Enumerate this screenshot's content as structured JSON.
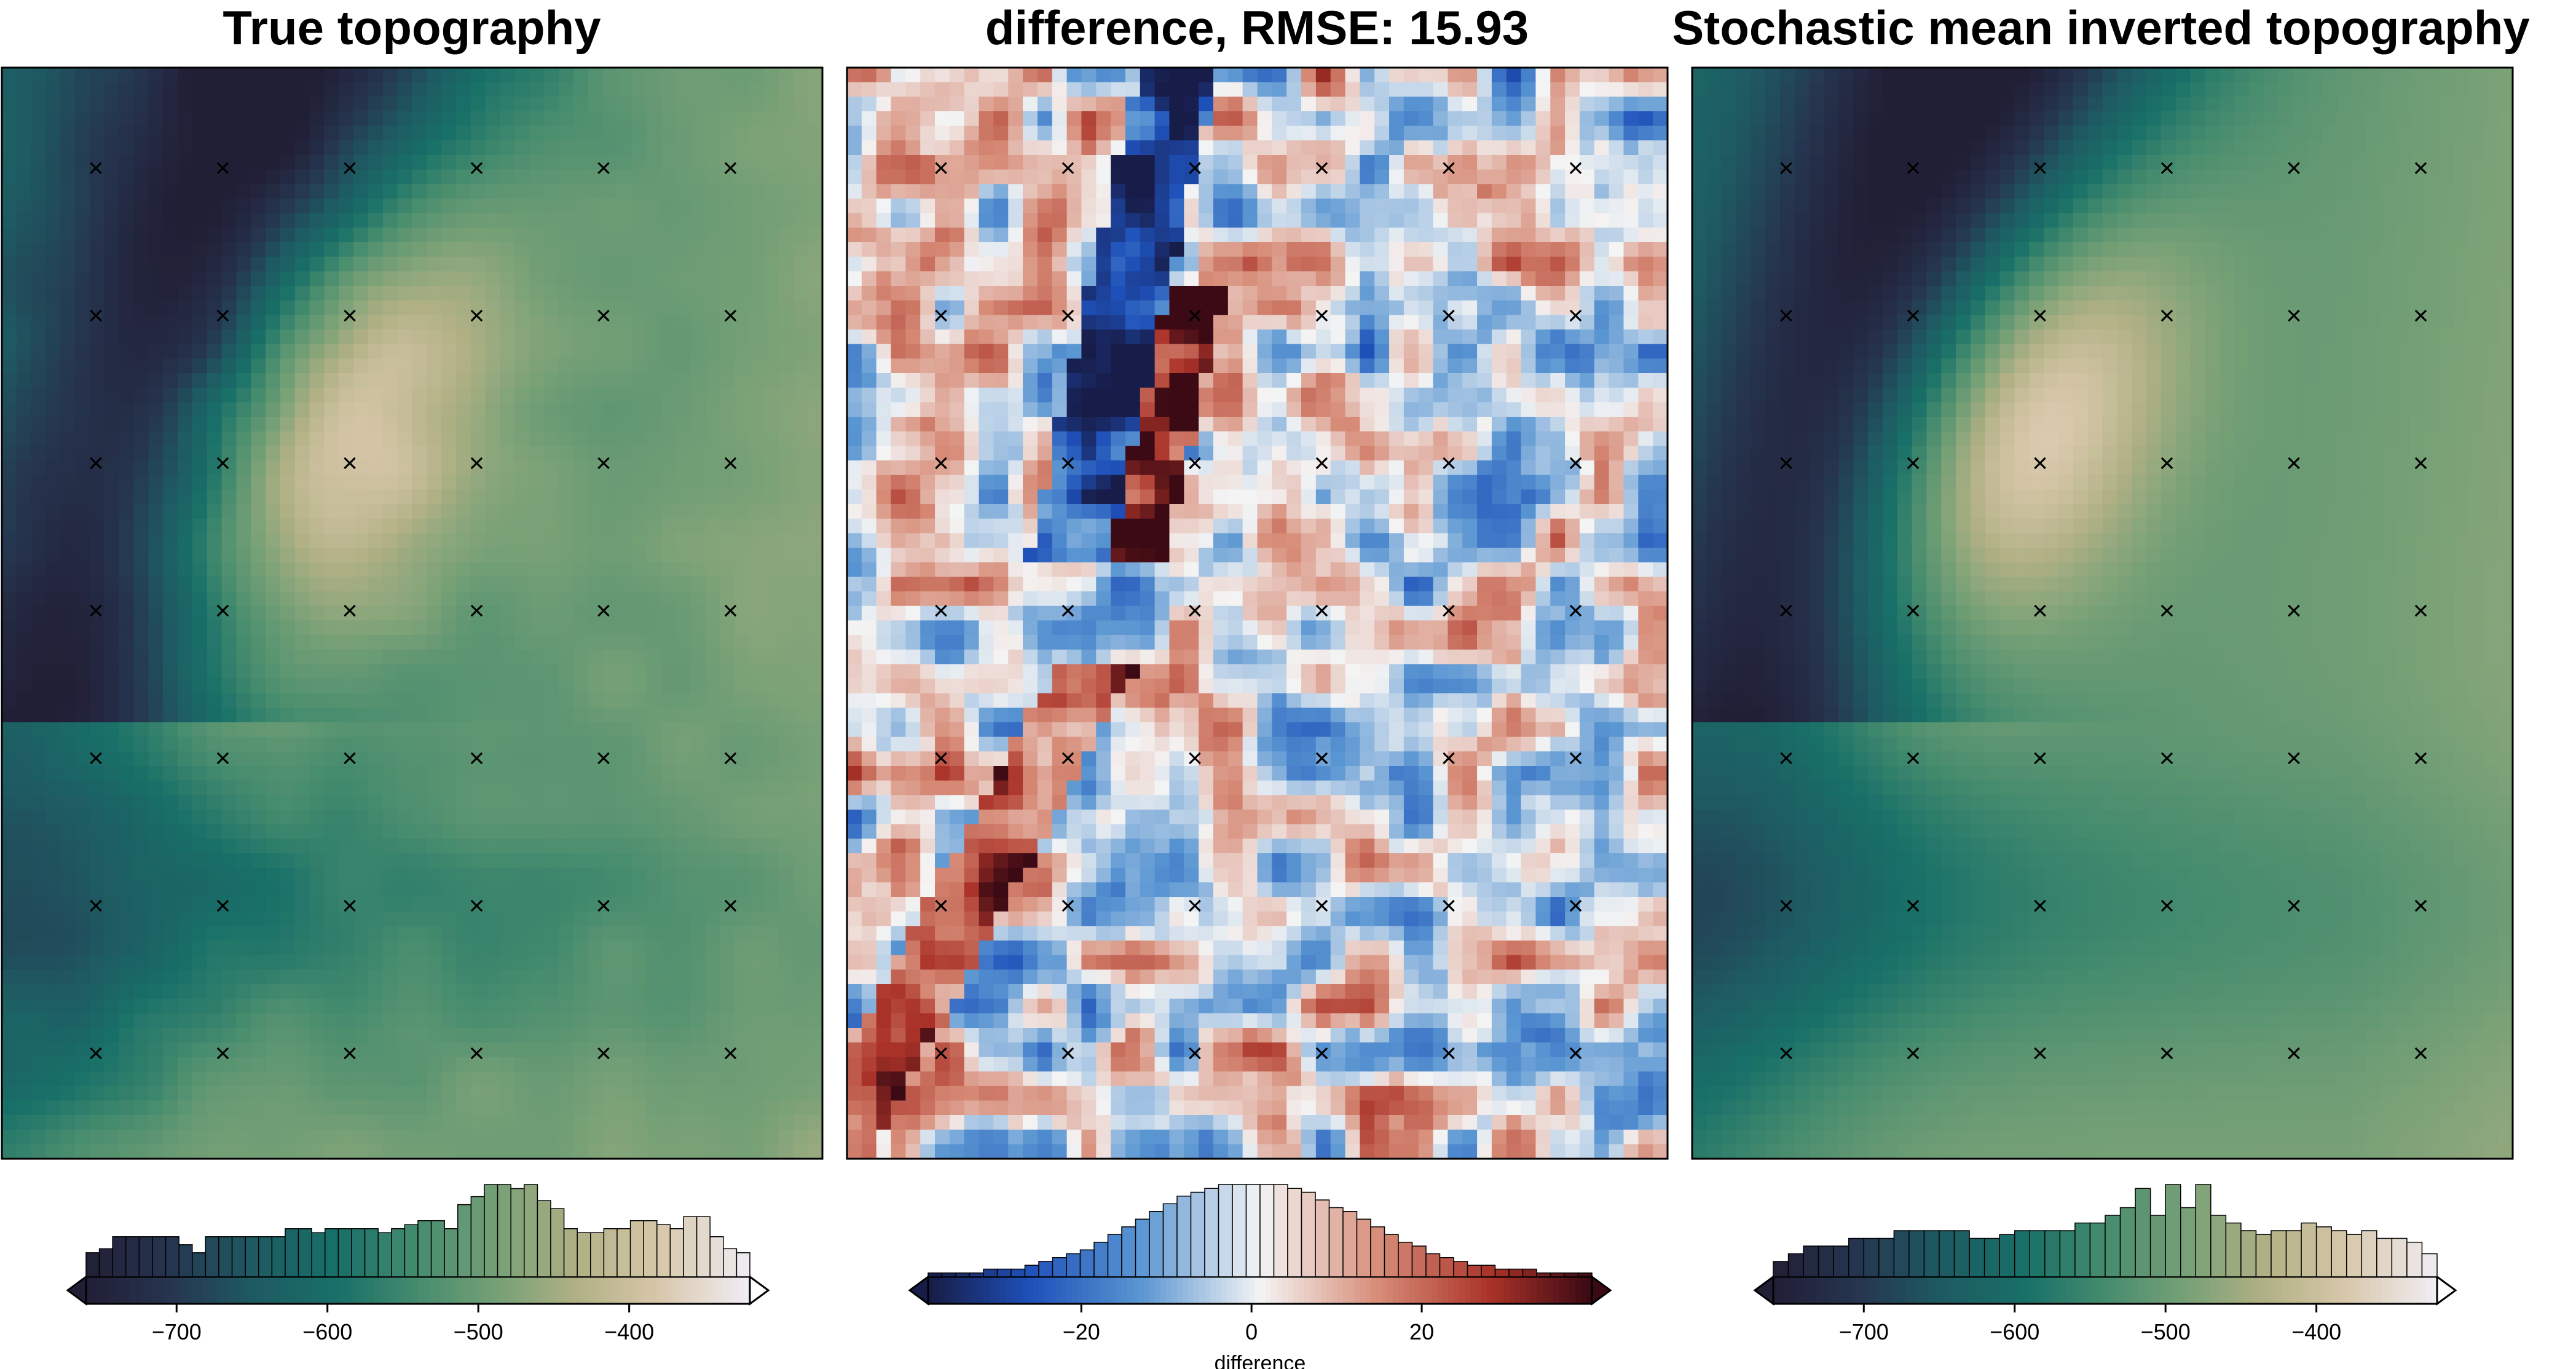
{
  "chart_data": [
    {
      "type": "heatmap",
      "title": "True topography",
      "colormap": "topography (dark navy - teal - green - tan - white)",
      "grid_rows": 75,
      "grid_cols": 56,
      "markers": {
        "symbol": "×",
        "rows": 7,
        "cols": 6
      },
      "colorbar": {
        "ticks": [
          -700,
          -600,
          -500,
          -400
        ],
        "tick_labels": [
          "−700",
          "−600",
          "−500",
          "−400"
        ],
        "range": [
          -760,
          -320
        ],
        "label": "",
        "histogram_counts": [
          6,
          7,
          10,
          10,
          10,
          10,
          10,
          8,
          6,
          10,
          10,
          10,
          10,
          10,
          10,
          12,
          12,
          11,
          12,
          12,
          12,
          12,
          11,
          12,
          13,
          14,
          14,
          12,
          18,
          20,
          23,
          23,
          22,
          23,
          19,
          17,
          12,
          11,
          11,
          12,
          12,
          14,
          14,
          13,
          12,
          15,
          15,
          10,
          7,
          6
        ]
      }
    },
    {
      "type": "heatmap",
      "title": "difference, RMSE: 15.93",
      "colormap": "balance (blue - white - red)",
      "grid_rows": 75,
      "grid_cols": 56,
      "markers": {
        "symbol": "×",
        "rows": 7,
        "cols": 6
      },
      "colorbar": {
        "ticks": [
          -20,
          0,
          20
        ],
        "tick_labels": [
          "−20",
          "0",
          "20"
        ],
        "range": [
          -38,
          40
        ],
        "label": "difference",
        "histogram_counts": [
          1,
          1,
          1,
          1,
          2,
          2,
          2,
          3,
          4,
          5,
          6,
          7,
          9,
          11,
          13,
          15,
          17,
          19,
          21,
          22,
          23,
          24,
          24,
          24,
          24,
          24,
          23,
          22,
          20,
          18,
          17,
          15,
          13,
          11,
          9,
          8,
          6,
          5,
          4,
          3,
          3,
          2,
          2,
          2,
          1,
          1,
          1,
          1
        ]
      }
    },
    {
      "type": "heatmap",
      "title": "Stochastic mean inverted topography",
      "colormap": "topography (dark navy - teal - green - tan - white)",
      "grid_rows": 75,
      "grid_cols": 56,
      "markers": {
        "symbol": "×",
        "rows": 7,
        "cols": 6
      },
      "colorbar": {
        "ticks": [
          -700,
          -600,
          -500,
          -400
        ],
        "tick_labels": [
          "−700",
          "−600",
          "−500",
          "−400"
        ],
        "range": [
          -760,
          -320
        ],
        "label": "",
        "histogram_counts": [
          4,
          6,
          8,
          8,
          8,
          10,
          10,
          10,
          12,
          12,
          12,
          12,
          12,
          10,
          10,
          11,
          12,
          12,
          12,
          12,
          14,
          14,
          16,
          18,
          23,
          16,
          24,
          18,
          24,
          16,
          14,
          12,
          11,
          12,
          12,
          14,
          13,
          12,
          11,
          12,
          10,
          10,
          9,
          6
        ]
      }
    }
  ]
}
